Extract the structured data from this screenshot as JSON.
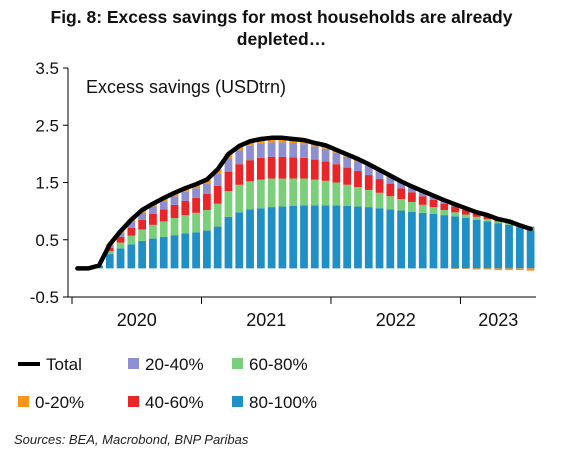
{
  "title": {
    "line1": "Fig. 8: Excess savings for most households are already",
    "line2": "depleted…"
  },
  "source": "Sources: BEA, Macrobond, BNP Paribas",
  "colors": {
    "b0_20": "#f7941d",
    "b20_40": "#8e8fd0",
    "b40_60": "#e8262a",
    "b60_80": "#7ccf7a",
    "b80_100": "#1f8fc6",
    "total": "#000000"
  },
  "chart_data": {
    "type": "bar",
    "subtype": "stacked bar with total line",
    "annotation": "Excess savings (USDtrn)",
    "xlabel": "",
    "ylabel": "",
    "ylim": [
      -0.5,
      3.5
    ],
    "yticks": [
      "3.5",
      "2.5",
      "1.5",
      "0.5",
      "-0.5"
    ],
    "xticks": [
      "2020",
      "2021",
      "2022",
      "2023"
    ],
    "grid": false,
    "legend_position": "bottom",
    "months": [
      "2020-01",
      "2020-02",
      "2020-03",
      "2020-04",
      "2020-05",
      "2020-06",
      "2020-07",
      "2020-08",
      "2020-09",
      "2020-10",
      "2020-11",
      "2020-12",
      "2021-01",
      "2021-02",
      "2021-03",
      "2021-04",
      "2021-05",
      "2021-06",
      "2021-07",
      "2021-08",
      "2021-09",
      "2021-10",
      "2021-11",
      "2021-12",
      "2022-01",
      "2022-02",
      "2022-03",
      "2022-04",
      "2022-05",
      "2022-06",
      "2022-07",
      "2022-08",
      "2022-09",
      "2022-10",
      "2022-11",
      "2022-12",
      "2023-01",
      "2023-02",
      "2023-03",
      "2023-04",
      "2023-05",
      "2023-06",
      "2023-07"
    ],
    "series": [
      {
        "name": "80-100%",
        "values": [
          0,
          0,
          0.05,
          0.25,
          0.35,
          0.42,
          0.48,
          0.52,
          0.55,
          0.58,
          0.61,
          0.63,
          0.66,
          0.73,
          0.9,
          0.98,
          1.03,
          1.05,
          1.07,
          1.08,
          1.09,
          1.1,
          1.1,
          1.1,
          1.1,
          1.09,
          1.08,
          1.07,
          1.05,
          1.03,
          1.01,
          0.99,
          0.97,
          0.95,
          0.93,
          0.91,
          0.88,
          0.85,
          0.82,
          0.79,
          0.76,
          0.72,
          0.68
        ]
      },
      {
        "name": "60-80%",
        "values": [
          0,
          0,
          0,
          0.05,
          0.1,
          0.15,
          0.2,
          0.24,
          0.27,
          0.3,
          0.32,
          0.34,
          0.36,
          0.4,
          0.45,
          0.48,
          0.49,
          0.5,
          0.5,
          0.49,
          0.48,
          0.47,
          0.45,
          0.43,
          0.4,
          0.37,
          0.34,
          0.3,
          0.27,
          0.23,
          0.2,
          0.17,
          0.14,
          0.12,
          0.09,
          0.07,
          0.06,
          0.05,
          0.04,
          0.03,
          0.03,
          0.02,
          0.02
        ]
      },
      {
        "name": "40-60%",
        "values": [
          0,
          0,
          0,
          0.06,
          0.1,
          0.14,
          0.17,
          0.19,
          0.21,
          0.23,
          0.25,
          0.26,
          0.28,
          0.31,
          0.34,
          0.36,
          0.37,
          0.38,
          0.38,
          0.38,
          0.37,
          0.36,
          0.35,
          0.34,
          0.32,
          0.3,
          0.28,
          0.26,
          0.24,
          0.22,
          0.19,
          0.17,
          0.15,
          0.13,
          0.11,
          0.1,
          0.08,
          0.07,
          0.06,
          0.05,
          0.04,
          0.03,
          0.02
        ]
      },
      {
        "name": "20-40%",
        "values": [
          0,
          0,
          0,
          0.04,
          0.07,
          0.1,
          0.12,
          0.13,
          0.14,
          0.15,
          0.16,
          0.17,
          0.18,
          0.21,
          0.23,
          0.24,
          0.25,
          0.25,
          0.25,
          0.25,
          0.25,
          0.24,
          0.23,
          0.22,
          0.2,
          0.19,
          0.17,
          0.16,
          0.14,
          0.12,
          0.11,
          0.09,
          0.08,
          0.07,
          0.06,
          0.05,
          0.04,
          0.03,
          0.03,
          0.02,
          0.02,
          0.01,
          0.01
        ]
      },
      {
        "name": "0-20%",
        "values": [
          0,
          0,
          0,
          0.02,
          0.03,
          0.04,
          0.05,
          0.05,
          0.06,
          0.06,
          0.06,
          0.07,
          0.07,
          0.08,
          0.08,
          0.08,
          0.08,
          0.08,
          0.08,
          0.08,
          0.07,
          0.07,
          0.06,
          0.06,
          0.05,
          0.04,
          0.04,
          0.03,
          0.02,
          0.02,
          0.01,
          0.01,
          0.01,
          0.0,
          0.0,
          -0.01,
          -0.01,
          -0.02,
          -0.02,
          -0.03,
          -0.03,
          -0.03,
          -0.04
        ]
      }
    ],
    "total": {
      "name": "Total",
      "values": [
        0,
        0,
        0.05,
        0.42,
        0.65,
        0.85,
        1.02,
        1.13,
        1.23,
        1.32,
        1.4,
        1.47,
        1.55,
        1.73,
        2.0,
        2.14,
        2.22,
        2.26,
        2.28,
        2.28,
        2.26,
        2.24,
        2.19,
        2.15,
        2.07,
        1.99,
        1.91,
        1.82,
        1.72,
        1.62,
        1.52,
        1.43,
        1.35,
        1.27,
        1.19,
        1.12,
        1.05,
        0.98,
        0.93,
        0.86,
        0.82,
        0.75,
        0.69
      ]
    }
  },
  "legend": {
    "total": "Total",
    "b20_40": "20-40%",
    "b60_80": "60-80%",
    "b0_20": "0-20%",
    "b40_60": "40-60%",
    "b80_100": "80-100%"
  }
}
